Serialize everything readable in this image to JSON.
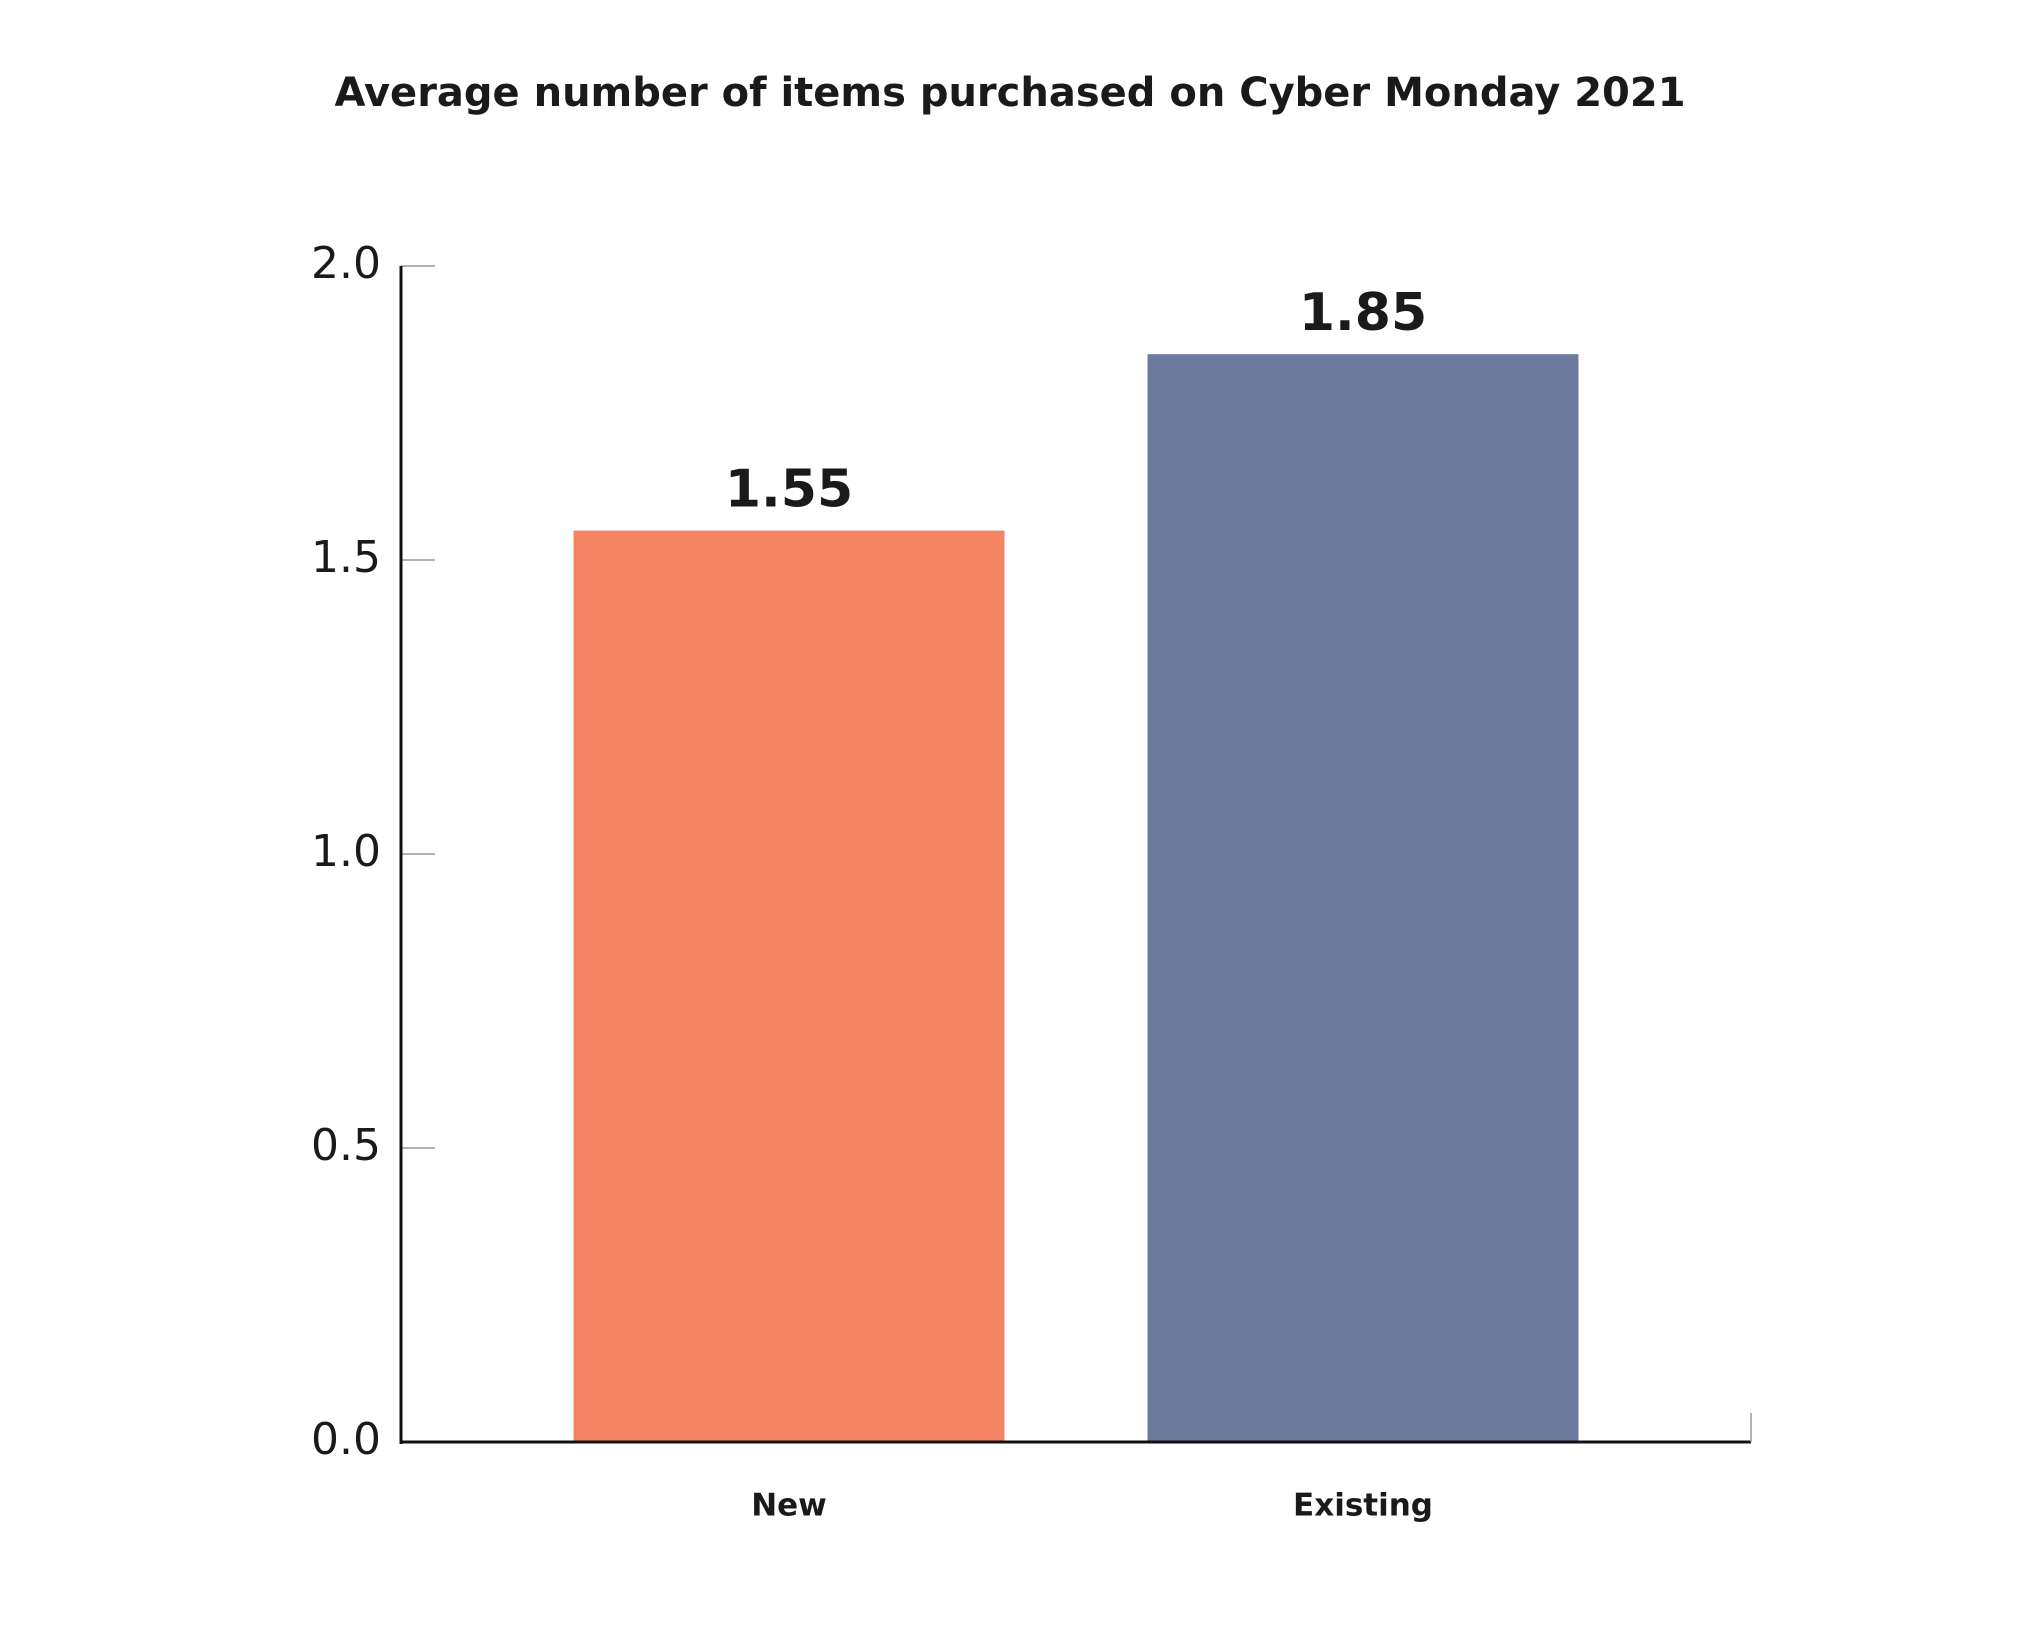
{
  "chart_data": {
    "type": "bar",
    "title": "Average number of items purchased on Cyber Monday 2021",
    "categories": [
      "New",
      "Existing"
    ],
    "values": [
      1.55,
      1.85
    ],
    "colors": [
      "#f48464",
      "#6c7b9d"
    ],
    "ylim": [
      0,
      2
    ],
    "yticks": [
      {
        "value": 0,
        "label": "0.0"
      },
      0.5,
      {
        "value": 1,
        "label": "1.0"
      },
      1.5,
      {
        "value": 2,
        "label": "2.0"
      }
    ]
  }
}
